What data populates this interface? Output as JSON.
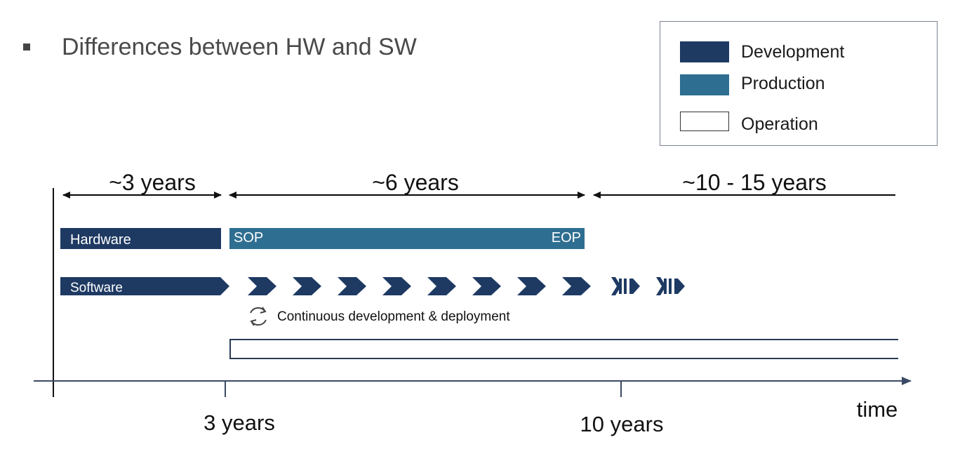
{
  "slide": {
    "title": "Differences between HW and SW"
  },
  "legend": {
    "items": [
      {
        "label": "Development",
        "color": "#1e3a63"
      },
      {
        "label": "Production",
        "color": "#2e6e91"
      },
      {
        "label": "Operation",
        "color": "#ffffff"
      }
    ]
  },
  "timeline": {
    "spans": [
      "~3 years",
      "~6 years",
      "~10 - 15 years"
    ],
    "hardware_label": "Hardware",
    "sop_label": "SOP",
    "eop_label": "EOP",
    "software_label": "Software",
    "continuous_label": "Continuous development & deployment",
    "axis_ticks": [
      "3 years",
      "10 years"
    ],
    "axis_label": "time"
  },
  "colors": {
    "development": "#1e3a63",
    "production": "#2e6e91",
    "arrow": "#1e3a63"
  }
}
